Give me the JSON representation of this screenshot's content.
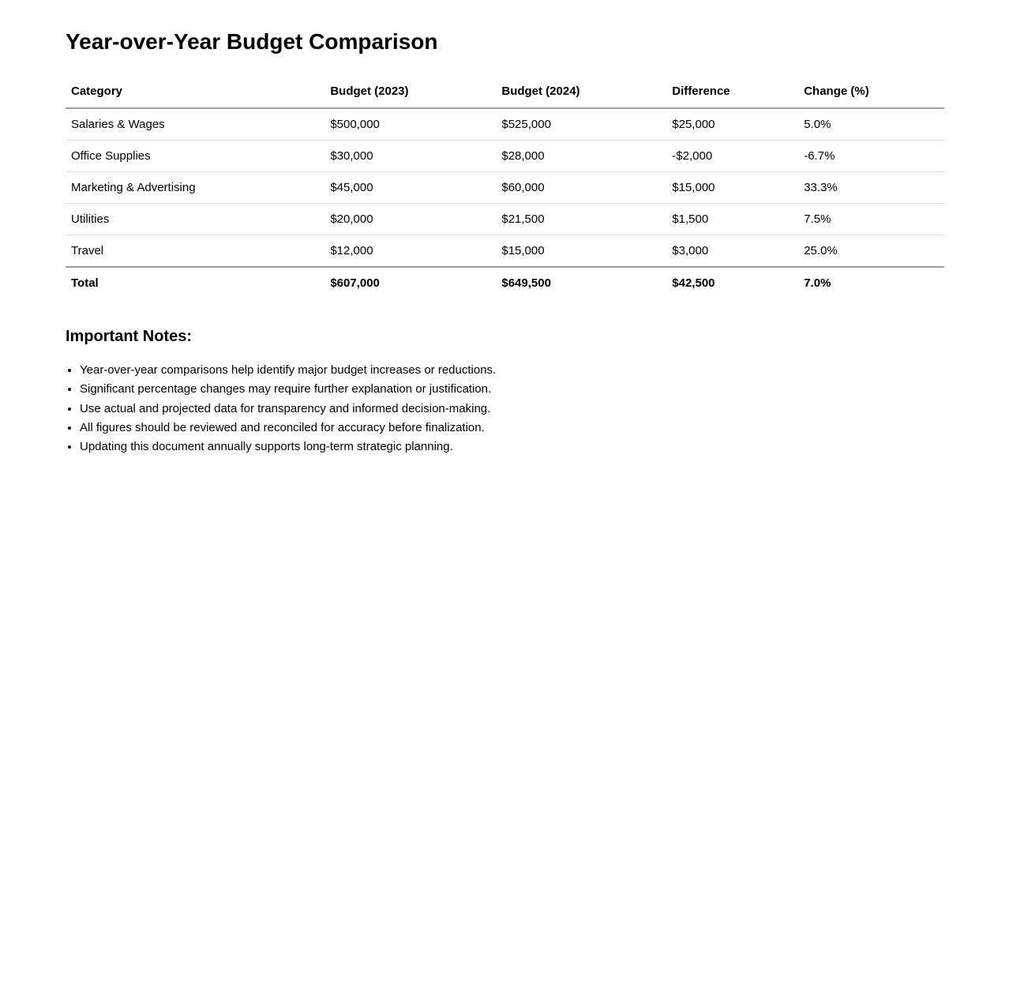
{
  "page": {
    "title": "Year-over-Year Budget Comparison"
  },
  "table": {
    "headers": [
      "Category",
      "Budget (2023)",
      "Budget (2024)",
      "Difference",
      "Change (%)"
    ],
    "rows": [
      [
        "Salaries & Wages",
        "$500,000",
        "$525,000",
        "$25,000",
        "5.0%"
      ],
      [
        "Office Supplies",
        "$30,000",
        "$28,000",
        "-$2,000",
        "-6.7%"
      ],
      [
        "Marketing & Advertising",
        "$45,000",
        "$60,000",
        "$15,000",
        "33.3%"
      ],
      [
        "Utilities",
        "$20,000",
        "$21,500",
        "$1,500",
        "7.5%"
      ],
      [
        "Travel",
        "$12,000",
        "$15,000",
        "$3,000",
        "25.0%"
      ]
    ],
    "total_row": [
      "Total",
      "$607,000",
      "$649,500",
      "$42,500",
      "7.0%"
    ]
  },
  "notes": {
    "heading": "Important Notes:",
    "items": [
      "Year-over-year comparisons help identify major budget increases or reductions.",
      "Significant percentage changes may require further explanation or justification.",
      "Use actual and projected data for transparency and informed decision-making.",
      "All figures should be reviewed and reconciled for accuracy before finalization.",
      "Updating this document annually supports long-term strategic planning."
    ]
  }
}
